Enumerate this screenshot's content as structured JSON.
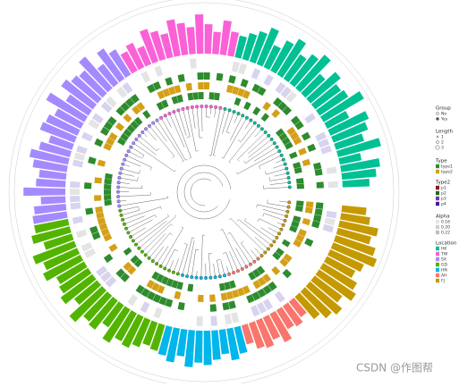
{
  "chart_data": {
    "type": "polar-bar",
    "ylim": [
      0,
      1
    ],
    "series": [
      {
        "name": "HK",
        "color": "#00c094",
        "values": [
          0.55,
          0.7,
          0.8,
          0.45,
          0.9,
          0.6,
          0.75,
          0.85,
          0.5,
          0.95,
          0.7,
          0.65,
          0.8,
          0.55,
          0.9,
          0.75,
          0.6,
          0.85,
          0.7,
          0.5,
          0.8,
          0.65,
          0.55,
          0.45
        ]
      },
      {
        "name": "TW",
        "color": "#fb61d7",
        "values": [
          0.5,
          0.7,
          0.45,
          0.6,
          0.8,
          0.55,
          0.65,
          0.75,
          0.5,
          0.6,
          0.7,
          0.4,
          0.55,
          0.45
        ]
      },
      {
        "name": "SX",
        "color": "#a58aff",
        "values": [
          0.6,
          0.75,
          0.5,
          0.85,
          0.65,
          0.7,
          0.8,
          0.55,
          0.9,
          0.6,
          0.7,
          0.75,
          0.5,
          0.65,
          0.8,
          0.7,
          0.55,
          0.6,
          0.85,
          0.5,
          0.65,
          0.7
        ]
      },
      {
        "name": "GD",
        "color": "#53b400",
        "values": [
          0.7,
          0.8,
          0.6,
          0.9,
          0.75,
          0.85,
          0.65,
          0.7,
          0.8,
          0.6,
          0.9,
          0.7,
          0.75,
          0.55,
          0.8,
          0.65,
          0.7,
          0.6,
          0.5,
          0.55
        ]
      },
      {
        "name": "HN",
        "color": "#00b6eb",
        "values": [
          0.6,
          0.7,
          0.55,
          0.75,
          0.65,
          0.7,
          0.6,
          0.5,
          0.65,
          0.55
        ]
      },
      {
        "name": "AH",
        "color": "#f8766d",
        "values": [
          0.4,
          0.55,
          0.6,
          0.5,
          0.65,
          0.45,
          0.5,
          0.4
        ]
      },
      {
        "name": "FJ",
        "color": "#c49a00",
        "values": [
          0.6,
          0.75,
          0.85,
          0.7,
          0.9,
          0.8,
          0.65,
          0.75,
          0.95,
          0.85,
          0.7,
          0.8,
          0.6,
          0.5
        ]
      }
    ]
  },
  "legend": {
    "group": {
      "title": "Group",
      "items": [
        "No",
        "Yes"
      ]
    },
    "length": {
      "title": "Length",
      "items": [
        "1",
        "2",
        "3"
      ]
    },
    "type": {
      "title": "Type",
      "items": [
        "type1",
        "type2"
      ]
    },
    "type2": {
      "title": "Type2",
      "items": [
        "p1",
        "p2",
        "p3",
        "p4"
      ]
    },
    "alpha": {
      "title": "Alpha",
      "items": [
        "0.16",
        "0.20",
        "0.22"
      ]
    },
    "location": {
      "title": "Location"
    }
  },
  "watermark": "CSDN @作图帮"
}
